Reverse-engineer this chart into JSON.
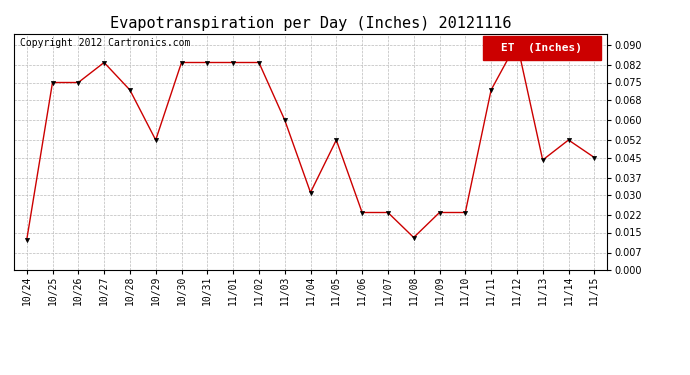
{
  "title": "Evapotranspiration per Day (Inches) 20121116",
  "copyright": "Copyright 2012 Cartronics.com",
  "legend_label": "ET  (Inches)",
  "x_labels": [
    "10/24",
    "10/25",
    "10/26",
    "10/27",
    "10/28",
    "10/29",
    "10/30",
    "10/31",
    "11/01",
    "11/02",
    "11/03",
    "11/04",
    "11/05",
    "11/06",
    "11/07",
    "11/08",
    "11/09",
    "11/10",
    "11/11",
    "11/12",
    "11/13",
    "11/14",
    "11/15"
  ],
  "y_values": [
    0.012,
    0.075,
    0.075,
    0.083,
    0.072,
    0.052,
    0.083,
    0.083,
    0.083,
    0.083,
    0.06,
    0.031,
    0.052,
    0.023,
    0.023,
    0.013,
    0.023,
    0.023,
    0.072,
    0.091,
    0.044,
    0.052,
    0.045
  ],
  "line_color": "#cc0000",
  "marker": "v",
  "marker_color": "#000000",
  "marker_size": 3,
  "background_color": "#ffffff",
  "grid_color": "#bbbbbb",
  "ylim": [
    0.0,
    0.0945
  ],
  "yticks": [
    0.0,
    0.007,
    0.015,
    0.022,
    0.03,
    0.037,
    0.045,
    0.052,
    0.06,
    0.068,
    0.075,
    0.082,
    0.09
  ],
  "title_fontsize": 11,
  "copyright_fontsize": 7,
  "tick_fontsize": 7,
  "legend_fontsize": 8,
  "legend_bg": "#cc0000",
  "legend_text_color": "#ffffff"
}
